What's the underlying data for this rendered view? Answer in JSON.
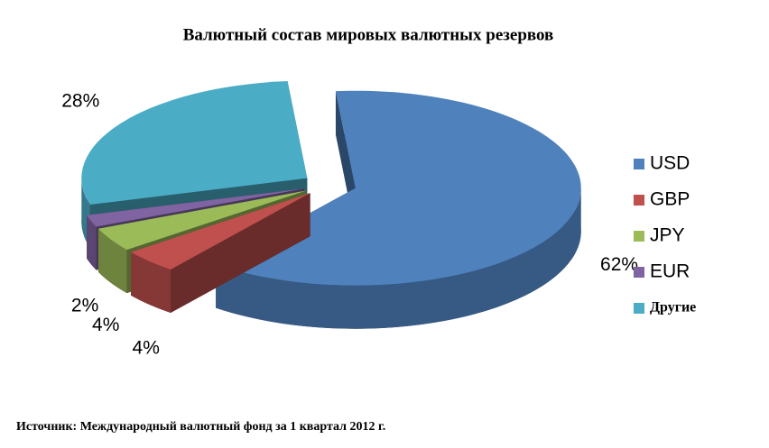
{
  "chart_data": {
    "type": "pie3d",
    "title": "Валютный состав мировых валютных резервов",
    "categories": [
      "USD",
      "GBP",
      "JPY",
      "EUR",
      "Другие"
    ],
    "values": [
      62,
      4,
      4,
      2,
      28
    ],
    "value_labels": [
      "62%",
      "4%",
      "4%",
      "2%",
      "28%"
    ],
    "colors": [
      "#4f81bd",
      "#c0504d",
      "#9bbb59",
      "#8064a2",
      "#4bacc6"
    ],
    "legend": "right",
    "source": "Источник: Международный валютный фонд за 1 квартал 2012 г."
  }
}
